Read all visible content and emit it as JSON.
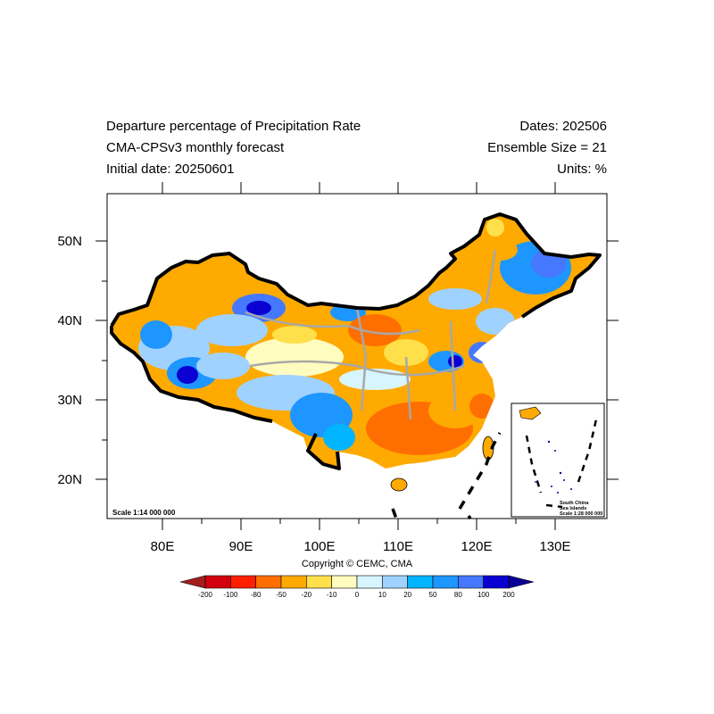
{
  "header": {
    "title_left_1": "Departure percentage of Precipitation Rate",
    "title_left_2": "CMA-CPSv3 monthly forecast",
    "title_left_3": "Initial date: 20250601",
    "title_right_1": "Dates: 202506",
    "title_right_2": "Ensemble Size = 21",
    "title_right_3": "Units: %"
  },
  "map": {
    "lat_labels": [
      "50N",
      "40N",
      "30N",
      "20N"
    ],
    "lon_labels": [
      "80E",
      "90E",
      "100E",
      "110E",
      "120E",
      "130E"
    ],
    "scale_main": "Scale 1:14 000 000",
    "inset_line1": "South China",
    "inset_line2": "Sea Islands",
    "inset_scale": "Scale 1:28 000 000",
    "copyright": "Copyright © CEMC, CMA"
  },
  "colorbar": {
    "labels": [
      "-200",
      "-100",
      "-80",
      "-50",
      "-20",
      "-10",
      "0",
      "10",
      "20",
      "50",
      "80",
      "100",
      "200"
    ],
    "colors": [
      "#a51e1e",
      "#d2000f",
      "#ff1e00",
      "#ff6e00",
      "#ffaa00",
      "#ffe04a",
      "#fffcc0",
      "#d7f5ff",
      "#a0d2ff",
      "#00b4ff",
      "#1e96ff",
      "#4678ff",
      "#0a00d2",
      "#0a0096"
    ]
  }
}
